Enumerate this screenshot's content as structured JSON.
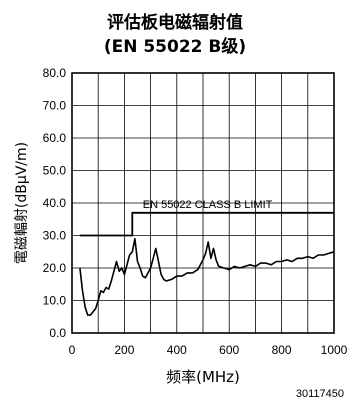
{
  "chart_data": {
    "type": "line",
    "title": "评估板电磁辐射值",
    "subtitle": "(EN 55022 B级)",
    "xlabel": "频率(MHz)",
    "ylabel": "電磁輻射(dBµV/m)",
    "xlim": [
      0,
      1000
    ],
    "ylim": [
      0,
      80
    ],
    "xticks": [
      "0",
      "200",
      "400",
      "600",
      "800",
      "1000"
    ],
    "yticks": [
      "0.0",
      "10.0",
      "20.0",
      "30.0",
      "40.0",
      "50.0",
      "60.0",
      "70.0",
      "80.0"
    ],
    "grid": true,
    "series": [
      {
        "name": "EN 55022 CLASS B LIMIT",
        "x": [
          30,
          230,
          230,
          1000
        ],
        "y": [
          30,
          30,
          37,
          37
        ]
      },
      {
        "name": "",
        "x": [
          30,
          40,
          50,
          60,
          70,
          80,
          90,
          100,
          110,
          120,
          130,
          140,
          150,
          160,
          170,
          180,
          190,
          200,
          210,
          220,
          230,
          240,
          250,
          260,
          270,
          280,
          290,
          300,
          310,
          320,
          330,
          340,
          350,
          360,
          380,
          400,
          420,
          440,
          460,
          480,
          500,
          510,
          520,
          530,
          540,
          550,
          560,
          580,
          600,
          620,
          640,
          660,
          680,
          700,
          720,
          740,
          760,
          780,
          800,
          820,
          840,
          860,
          880,
          900,
          920,
          940,
          960,
          980,
          1000
        ],
        "y": [
          20,
          13,
          8,
          5.5,
          5.5,
          6.5,
          7.5,
          10,
          13,
          12.5,
          14,
          13.5,
          16,
          19,
          22,
          19,
          20,
          18,
          21,
          24,
          25,
          29,
          22,
          20,
          17.5,
          17,
          18.5,
          20,
          23,
          26,
          22,
          18,
          16.5,
          16,
          16.5,
          17.5,
          17.5,
          18.5,
          18.5,
          19.5,
          22.5,
          24.5,
          28,
          23,
          26,
          22.5,
          20.5,
          20,
          19.5,
          20.5,
          20,
          20.5,
          21,
          20.5,
          21.5,
          21.5,
          21,
          22,
          22,
          22.5,
          22,
          23,
          23,
          23.5,
          23,
          24,
          24,
          24.5,
          25
        ]
      }
    ]
  },
  "figure_id": "30117450"
}
